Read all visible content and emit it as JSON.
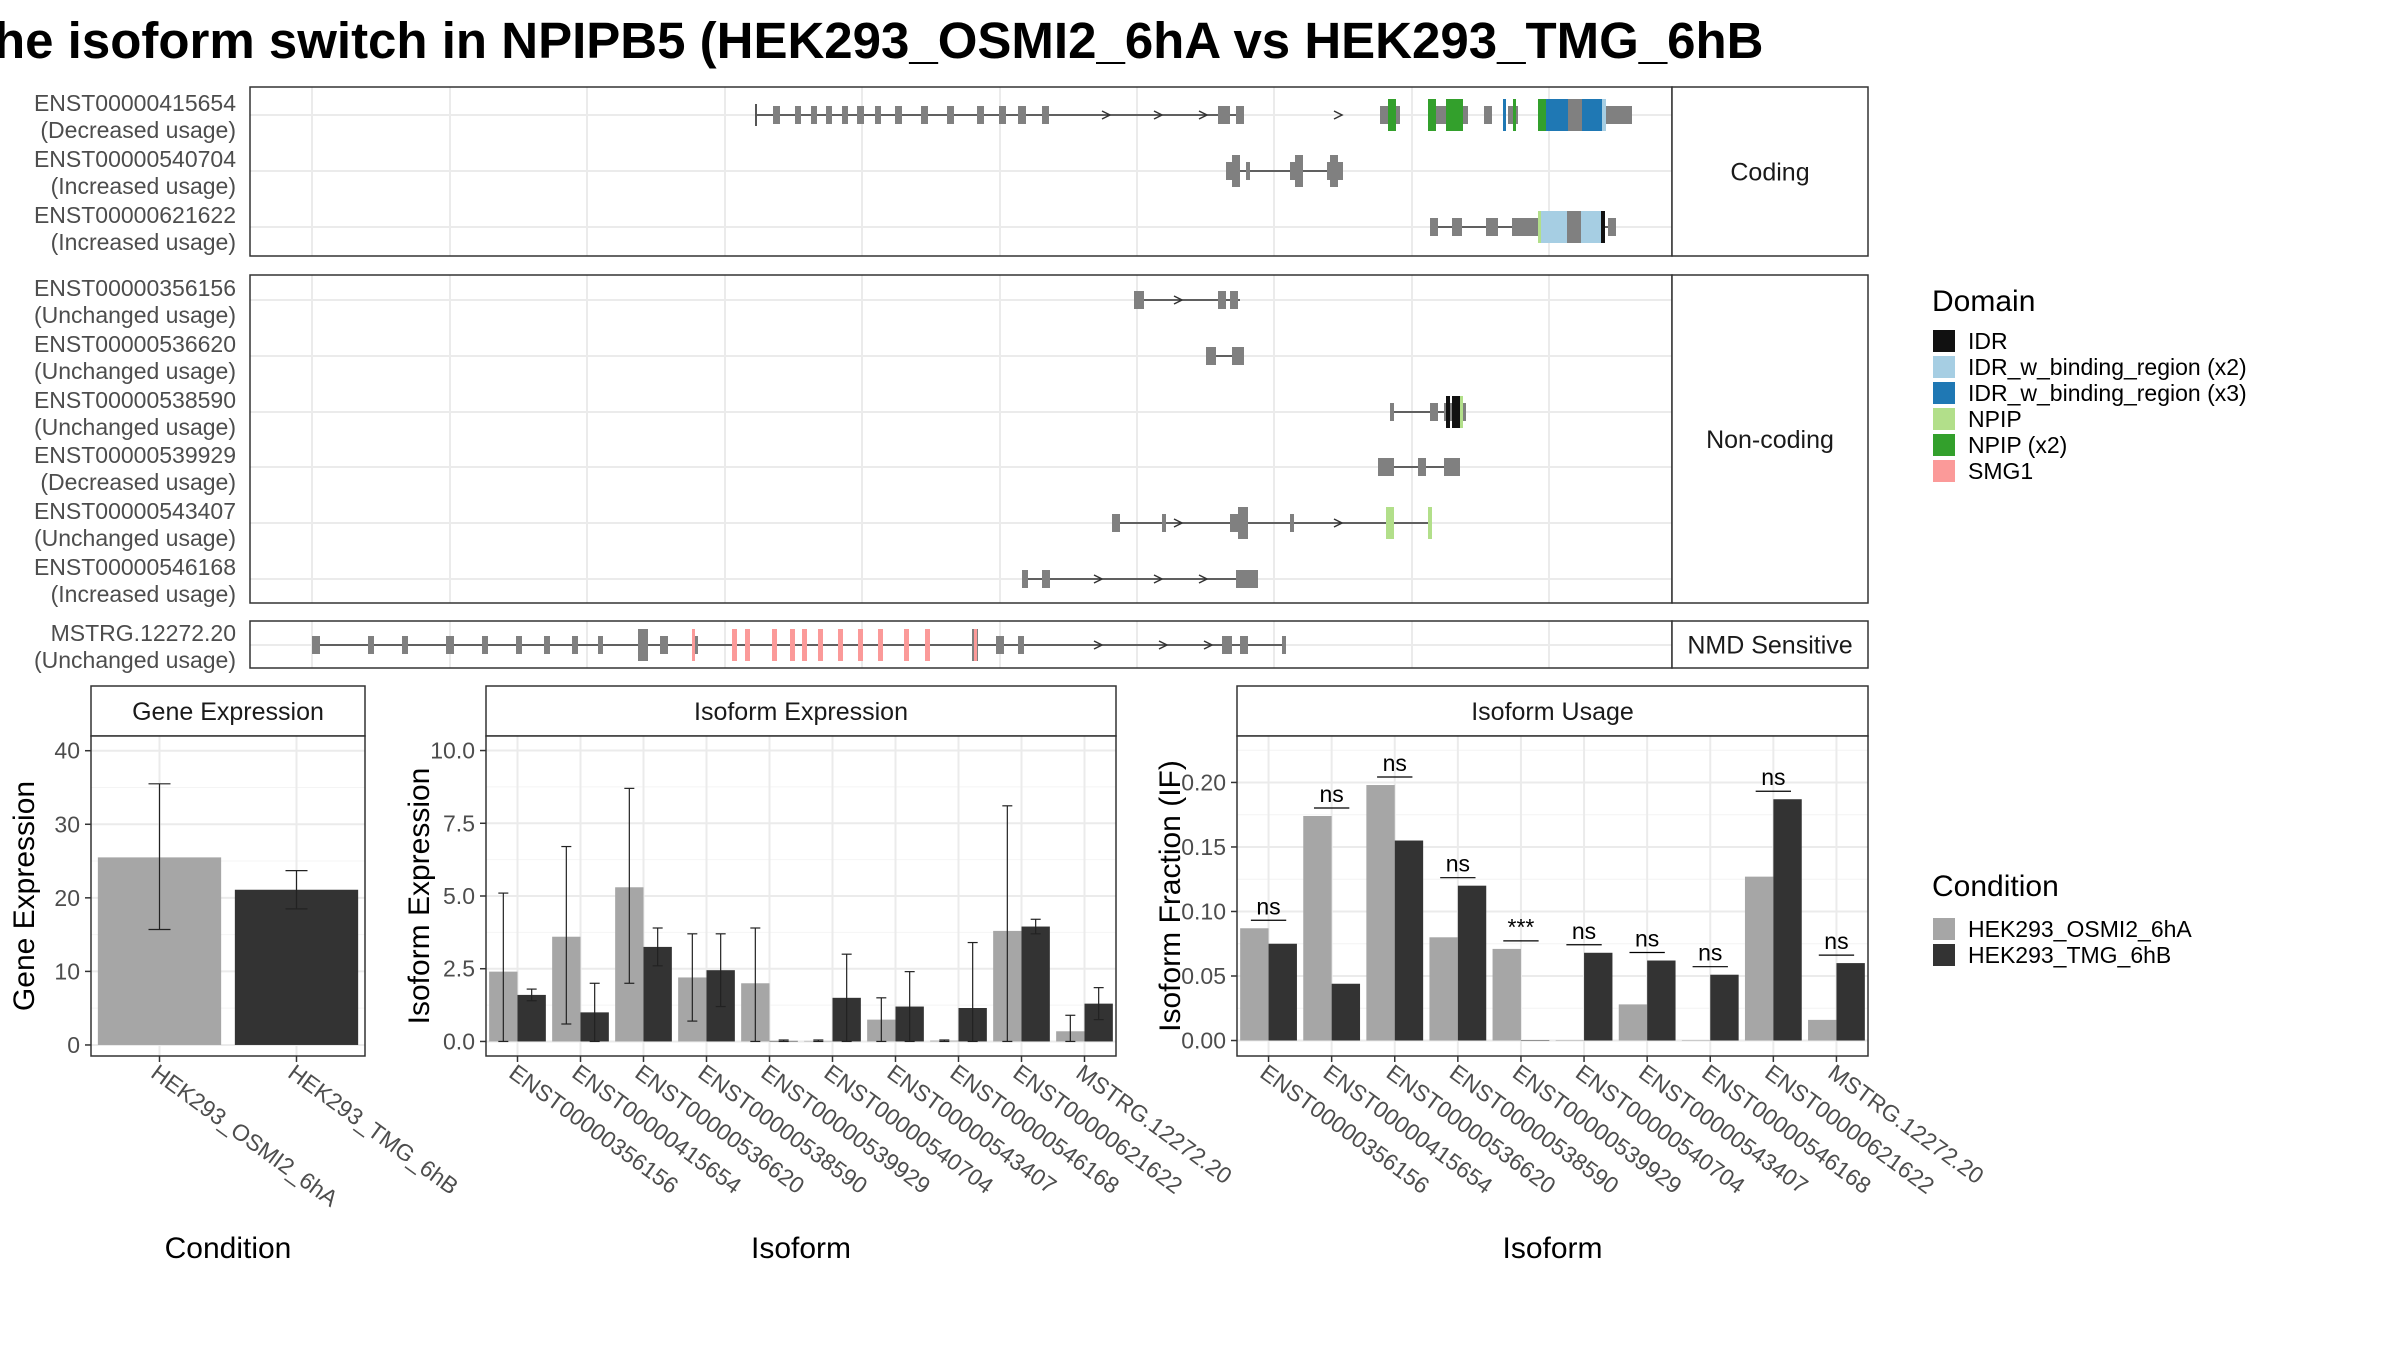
{
  "title": "he isoform switch in NPIPB5 (HEK293_OSMI2_6hA vs HEK293_TMG_6hB",
  "colors": {
    "IDR": "#111111",
    "IDR_w_binding_region (x2)": "#a6cee3",
    "IDR_w_binding_region (x3)": "#1f78b4",
    "NPIP": "#b2df8a",
    "NPIP (x2)": "#33a02c",
    "SMG1": "#fb9a99",
    "exon": "#808080",
    "HEK293_OSMI2_6hA": "#a6a6a6",
    "HEK293_TMG_6hB": "#333333"
  },
  "structure": {
    "panels": [
      {
        "strip": "Coding",
        "transcripts": [
          {
            "id": "ENST00000415654",
            "usage": "(Decreased usage)"
          },
          {
            "id": "ENST00000540704",
            "usage": "(Increased usage)"
          },
          {
            "id": "ENST00000621622",
            "usage": "(Increased usage)"
          }
        ]
      },
      {
        "strip": "Non-coding",
        "transcripts": [
          {
            "id": "ENST00000356156",
            "usage": "(Unchanged usage)"
          },
          {
            "id": "ENST00000536620",
            "usage": "(Unchanged usage)"
          },
          {
            "id": "ENST00000538590",
            "usage": "(Unchanged usage)"
          },
          {
            "id": "ENST00000539929",
            "usage": "(Decreased usage)"
          },
          {
            "id": "ENST00000543407",
            "usage": "(Unchanged usage)"
          },
          {
            "id": "ENST00000546168",
            "usage": "(Increased usage)"
          }
        ]
      },
      {
        "strip": "NMD Sensitive",
        "transcripts": [
          {
            "id": "MSTRG.12272.20",
            "usage": "(Unchanged usage)"
          }
        ]
      }
    ]
  },
  "legend_domain": {
    "title": "Domain",
    "items": [
      "IDR",
      "IDR_w_binding_region (x2)",
      "IDR_w_binding_region (x3)",
      "NPIP",
      "NPIP (x2)",
      "SMG1"
    ]
  },
  "legend_condition": {
    "title": "Condition",
    "items": [
      "HEK293_OSMI2_6hA",
      "HEK293_TMG_6hB"
    ]
  },
  "chart_data": [
    {
      "type": "bar",
      "title": "Gene Expression",
      "xlabel": "Condition",
      "ylabel": "Gene Expression",
      "categories": [
        "HEK293_OSMI2_6hA",
        "HEK293_TMG_6hB"
      ],
      "values": [
        25.5,
        21.1
      ],
      "error_low": [
        15.7,
        18.5
      ],
      "error_high": [
        35.5,
        23.7
      ],
      "ylim": [
        -1.5,
        42
      ],
      "yticks": [
        "0",
        "10",
        "20",
        "30",
        "40"
      ]
    },
    {
      "type": "bar",
      "title": "Isoform Expression",
      "xlabel": "Isoform",
      "ylabel": "Isoform Expression",
      "categories": [
        "ENST00000356156",
        "ENST00000415654",
        "ENST00000536620",
        "ENST00000538590",
        "ENST00000539929",
        "ENST00000540704",
        "ENST00000543407",
        "ENST00000546168",
        "ENST00000621622",
        "MSTRG.12272.20"
      ],
      "series": [
        {
          "name": "HEK293_OSMI2_6hA",
          "values": [
            2.4,
            3.6,
            5.3,
            2.2,
            2.0,
            0.02,
            0.75,
            0.03,
            3.8,
            0.35
          ],
          "error_low": [
            0.0,
            0.6,
            2.0,
            0.7,
            0.0,
            0.0,
            0.0,
            0.0,
            0.0,
            0.0
          ],
          "error_high": [
            5.1,
            6.7,
            8.7,
            3.7,
            3.9,
            0.05,
            1.5,
            0.05,
            8.1,
            0.9
          ]
        },
        {
          "name": "HEK293_TMG_6hB",
          "values": [
            1.6,
            1.0,
            3.25,
            2.45,
            0.02,
            1.5,
            1.2,
            1.15,
            3.95,
            1.3
          ],
          "error_low": [
            1.4,
            0.0,
            2.6,
            1.2,
            0.0,
            0.0,
            0.0,
            0.0,
            3.7,
            0.75
          ],
          "error_high": [
            1.8,
            2.0,
            3.9,
            3.7,
            0.05,
            3.0,
            2.4,
            3.4,
            4.2,
            1.85
          ]
        }
      ],
      "ylim": [
        -0.5,
        10.5
      ],
      "yticks": [
        "0.0",
        "2.5",
        "5.0",
        "7.5",
        "10.0"
      ]
    },
    {
      "type": "bar",
      "title": "Isoform Usage",
      "xlabel": "Isoform",
      "ylabel": "Isoform Fraction (IF)",
      "categories": [
        "ENST00000356156",
        "ENST00000415654",
        "ENST00000536620",
        "ENST00000538590",
        "ENST00000539929",
        "ENST00000540704",
        "ENST00000543407",
        "ENST00000546168",
        "ENST00000621622",
        "MSTRG.12272.20"
      ],
      "series": [
        {
          "name": "HEK293_OSMI2_6hA",
          "values": [
            0.087,
            0.174,
            0.198,
            0.08,
            0.071,
            0.0,
            0.028,
            0.0,
            0.127,
            0.016
          ]
        },
        {
          "name": "HEK293_TMG_6hB",
          "values": [
            0.075,
            0.044,
            0.155,
            0.12,
            0.0,
            0.068,
            0.062,
            0.051,
            0.187,
            0.06
          ]
        }
      ],
      "significance": [
        "ns",
        "ns",
        "ns",
        "ns",
        "***",
        "ns",
        "ns",
        "ns",
        "ns",
        "ns"
      ],
      "ylim": [
        -0.012,
        0.236
      ],
      "yticks": [
        "0.00",
        "0.05",
        "0.10",
        "0.15",
        "0.20"
      ]
    }
  ]
}
